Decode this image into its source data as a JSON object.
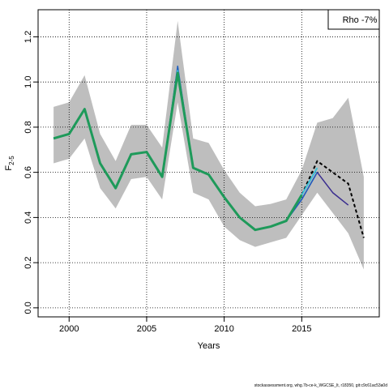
{
  "chart_data": {
    "type": "line",
    "xlabel": "Years",
    "ylabel_main": "F",
    "ylabel_sub": "2-5",
    "xlim": [
      1998,
      2020
    ],
    "ylim": [
      -0.04,
      1.32
    ],
    "xticks": [
      2000,
      2005,
      2010,
      2015
    ],
    "yticks": [
      0.0,
      0.2,
      0.4,
      0.6,
      0.8,
      1.0,
      1.2
    ],
    "ytick_labels": [
      "0.0",
      "0.2",
      "0.4",
      "0.6",
      "0.8",
      "1.0",
      "1.2"
    ],
    "grid": true,
    "legend_text": "Rho -7%",
    "legend_placement": "top-right",
    "footer": "stockassessment.org, whg.7b-ce-k_WGCSE_lt, r18350, git:c9c61ac53a0d",
    "confidence_band": {
      "x": [
        1999,
        2000,
        2001,
        2002,
        2003,
        2004,
        2005,
        2006,
        2007,
        2008,
        2009,
        2010,
        2011,
        2012,
        2013,
        2014,
        2015,
        2016,
        2017,
        2018,
        2019
      ],
      "upper": [
        0.89,
        0.91,
        1.03,
        0.77,
        0.65,
        0.81,
        0.81,
        0.71,
        1.27,
        0.75,
        0.73,
        0.61,
        0.51,
        0.45,
        0.46,
        0.48,
        0.61,
        0.82,
        0.84,
        0.93,
        0.58
      ],
      "lower": [
        0.64,
        0.66,
        0.75,
        0.53,
        0.44,
        0.57,
        0.58,
        0.48,
        0.91,
        0.51,
        0.48,
        0.36,
        0.3,
        0.27,
        0.29,
        0.31,
        0.41,
        0.51,
        0.42,
        0.33,
        0.17
      ],
      "color": "#bebebe"
    },
    "series": [
      {
        "x": [
          1999,
          2000,
          2001,
          2002,
          2003,
          2004,
          2005,
          2006,
          2007,
          2008,
          2009,
          2010,
          2011,
          2012,
          2013,
          2014,
          2015,
          2016,
          2017,
          2018,
          2019
        ],
        "values": [
          0.75,
          0.77,
          0.88,
          0.64,
          0.53,
          0.68,
          0.69,
          0.58,
          1.04,
          0.62,
          0.59,
          0.49,
          0.4,
          0.345,
          0.36,
          0.385,
          0.5,
          0.65,
          0.6,
          0.55,
          0.31
        ],
        "color": "#000000",
        "dashed": true,
        "width": 2
      },
      {
        "x": [
          1999,
          2000,
          2001,
          2002,
          2003,
          2004,
          2005,
          2006,
          2007,
          2008,
          2009,
          2010,
          2011,
          2012,
          2013,
          2014,
          2015,
          2016,
          2017,
          2018
        ],
        "values": [
          0.75,
          0.77,
          0.88,
          0.64,
          0.53,
          0.68,
          0.69,
          0.58,
          1.06,
          0.62,
          0.59,
          0.49,
          0.4,
          0.345,
          0.36,
          0.385,
          0.48,
          0.6,
          0.51,
          0.455
        ],
        "color": "#3a2d8f",
        "dashed": false,
        "width": 1.5
      },
      {
        "x": [
          1999,
          2000,
          2001,
          2002,
          2003,
          2004,
          2005,
          2006,
          2007,
          2008,
          2009,
          2010,
          2011,
          2012,
          2013,
          2014,
          2015,
          2016
        ],
        "values": [
          0.75,
          0.77,
          0.88,
          0.64,
          0.53,
          0.68,
          0.69,
          0.58,
          1.07,
          0.62,
          0.59,
          0.49,
          0.4,
          0.345,
          0.36,
          0.385,
          0.48,
          0.6
        ],
        "color": "#1f5fbf",
        "dashed": false,
        "width": 1.5
      },
      {
        "x": [
          1999,
          2000,
          2001,
          2002,
          2003,
          2004,
          2005,
          2006,
          2007,
          2008,
          2009,
          2010,
          2011,
          2012,
          2013,
          2014,
          2015,
          2016
        ],
        "values": [
          0.75,
          0.77,
          0.88,
          0.64,
          0.53,
          0.68,
          0.69,
          0.58,
          1.05,
          0.62,
          0.59,
          0.49,
          0.4,
          0.345,
          0.36,
          0.385,
          0.5,
          0.62
        ],
        "color": "#3cc0d8",
        "dashed": false,
        "width": 2
      },
      {
        "x": [
          1999,
          2000,
          2001,
          2002,
          2003,
          2004,
          2005,
          2006,
          2007,
          2008,
          2009,
          2010,
          2011,
          2012,
          2013,
          2014,
          2015
        ],
        "values": [
          0.75,
          0.77,
          0.88,
          0.64,
          0.53,
          0.68,
          0.69,
          0.58,
          1.04,
          0.62,
          0.59,
          0.49,
          0.4,
          0.345,
          0.36,
          0.385,
          0.5
        ],
        "color": "#1e9a5a",
        "dashed": false,
        "width": 3
      }
    ]
  }
}
